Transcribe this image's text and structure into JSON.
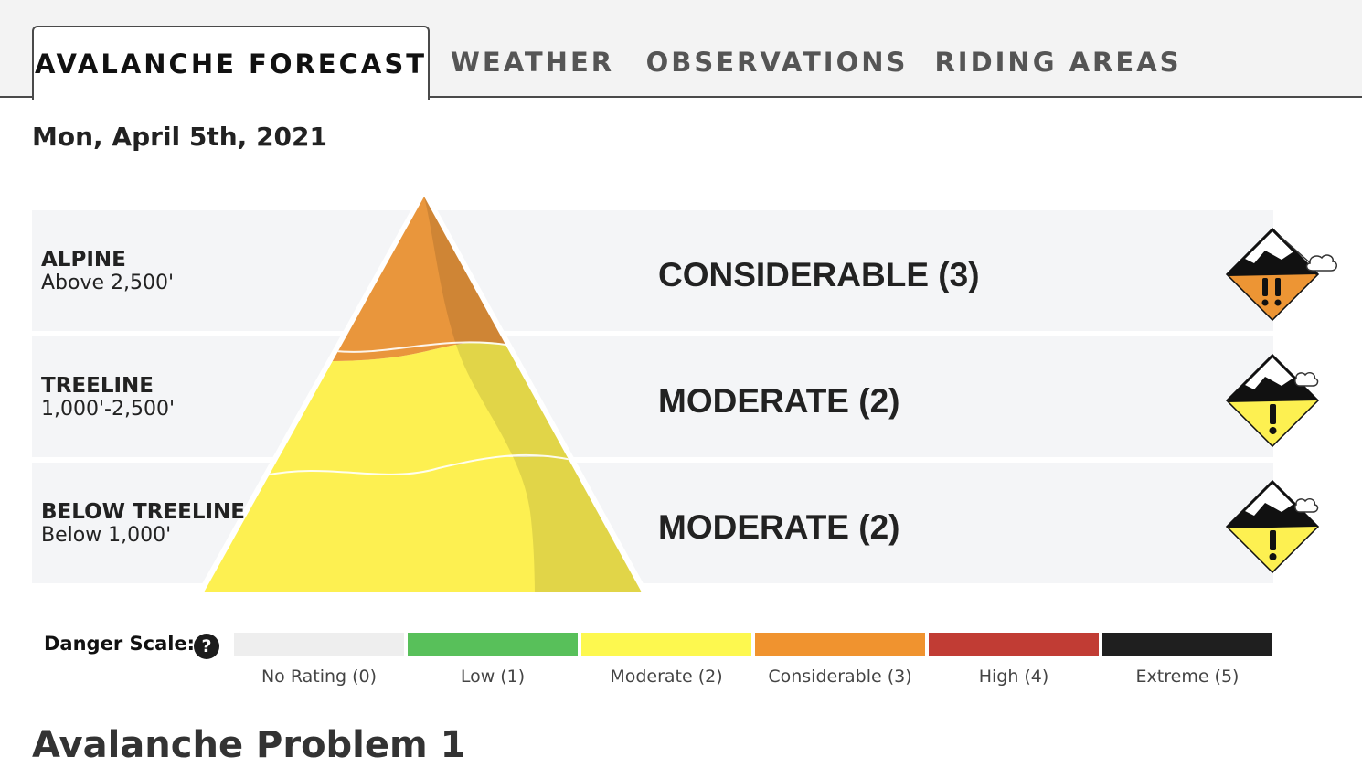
{
  "tabs": [
    {
      "label": "AVALANCHE FORECAST",
      "active": true
    },
    {
      "label": "WEATHER",
      "active": false
    },
    {
      "label": "OBSERVATIONS",
      "active": false
    },
    {
      "label": "RIDING AREAS",
      "active": false
    }
  ],
  "date": "Mon, April 5th, 2021",
  "bands": [
    {
      "name": "ALPINE",
      "elevation": "Above 2,500'",
      "rating": "CONSIDERABLE (3)",
      "level": 3,
      "color": "#f0922f"
    },
    {
      "name": "TREELINE",
      "elevation": "1,000'-2,500'",
      "rating": "MODERATE (2)",
      "level": 2,
      "color": "#fdf051"
    },
    {
      "name": "BELOW TREELINE",
      "elevation": "Below 1,000'",
      "rating": "MODERATE (2)",
      "level": 2,
      "color": "#fdf051"
    }
  ],
  "danger_scale": {
    "label": "Danger Scale:",
    "help": "?",
    "levels": [
      {
        "label": "No Rating (0)",
        "color": "#eeeeee"
      },
      {
        "label": "Low (1)",
        "color": "#58c05a"
      },
      {
        "label": "Moderate (2)",
        "color": "#fdf84f"
      },
      {
        "label": "Considerable (3)",
        "color": "#f0932f"
      },
      {
        "label": "High (4)",
        "color": "#c13c34"
      },
      {
        "label": "Extreme (5)",
        "color": "#1f1f1f"
      }
    ]
  },
  "problem_heading": "Avalanche Problem 1"
}
